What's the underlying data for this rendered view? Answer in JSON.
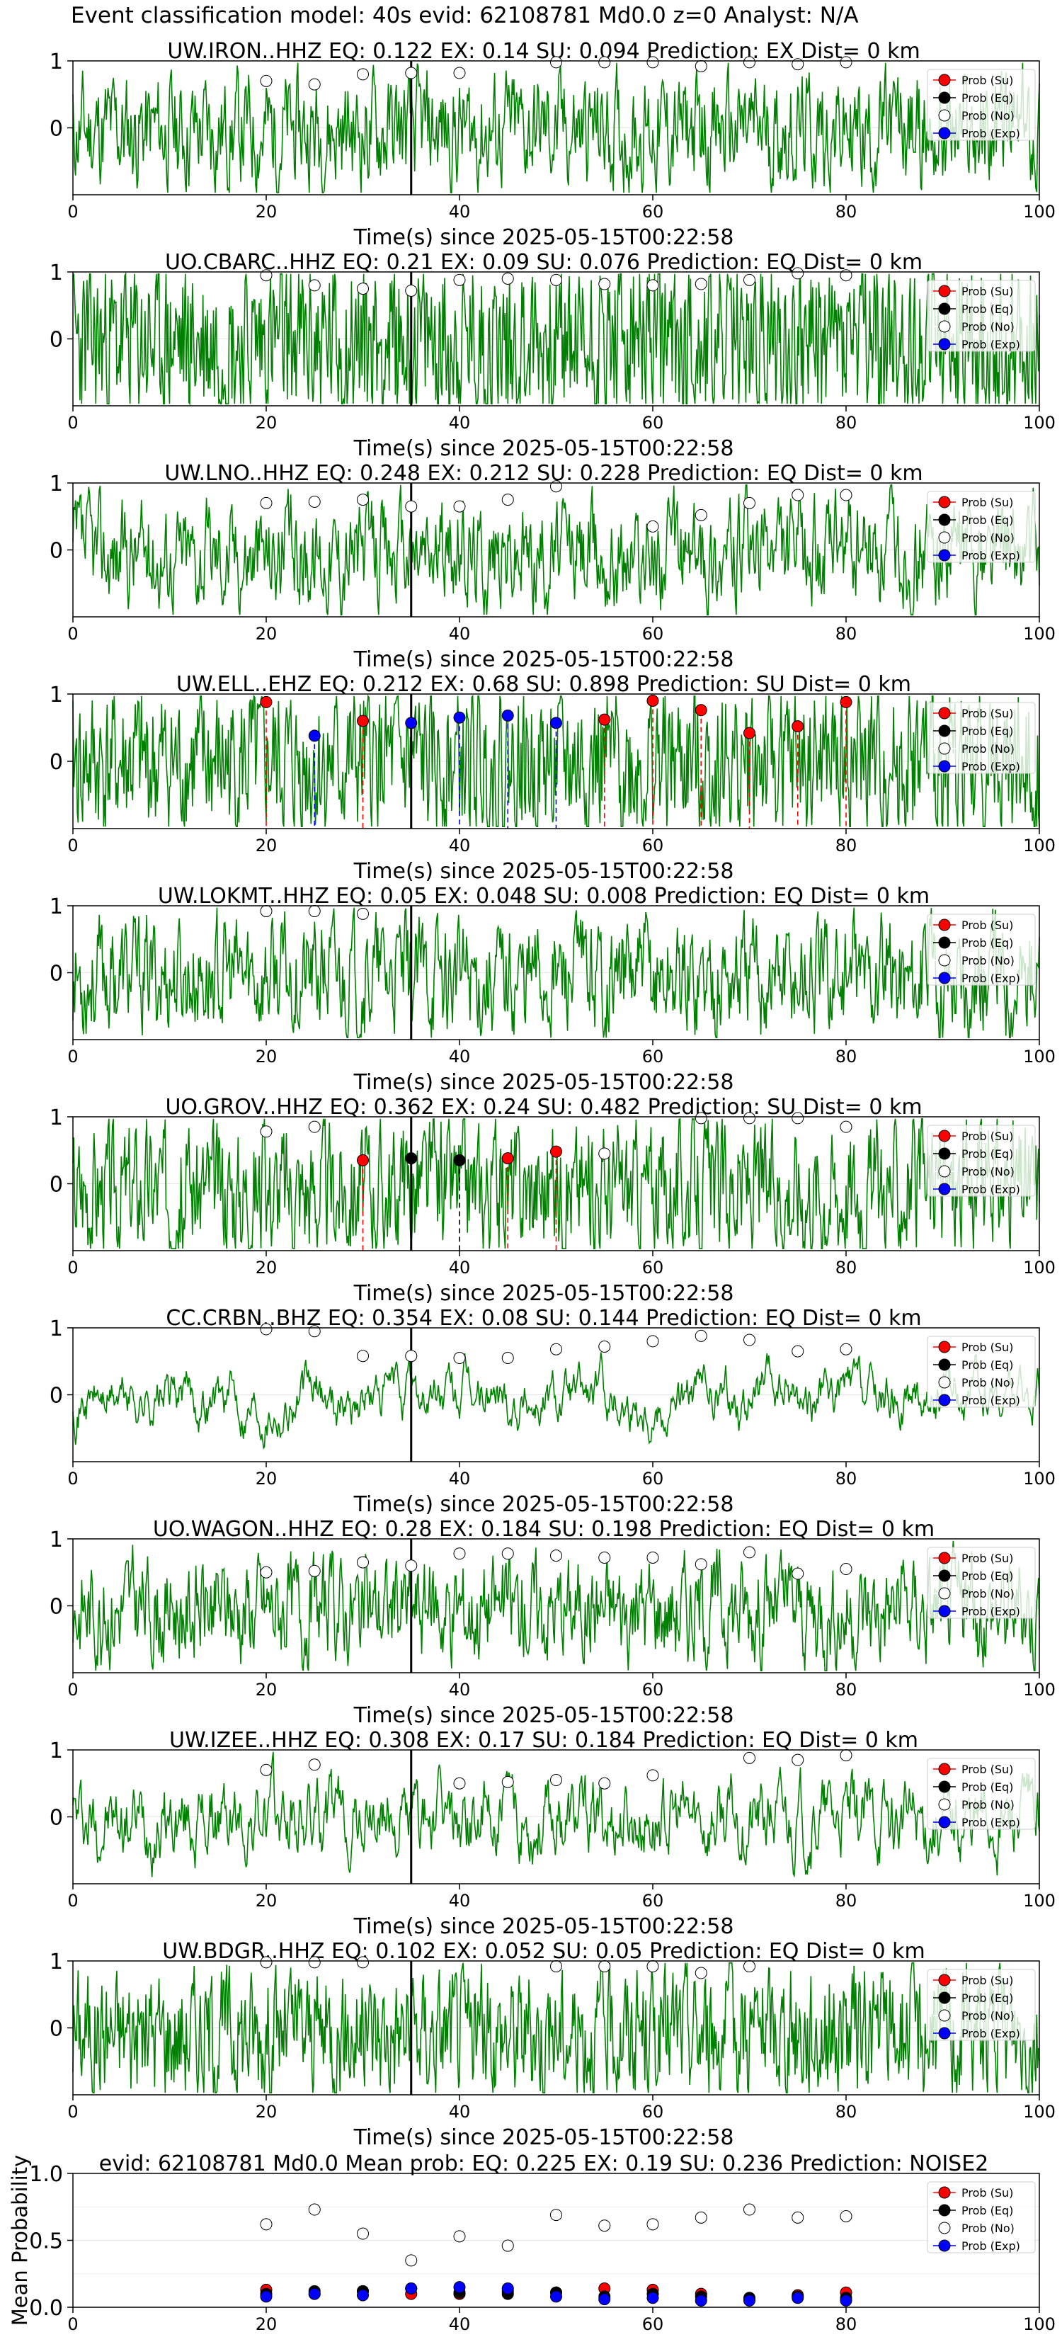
{
  "page_title": "Event classification model: 40s evid: 62108781 Md0.0 z=0 Analyst: N/A",
  "colors": {
    "waveform": "#008000",
    "su": "#ff0000",
    "eq": "#000000",
    "no": "#ffffff",
    "exp": "#0000ff",
    "pick_line": "#000000"
  },
  "legend": [
    "Prob (Su)",
    "Prob (Eq)",
    "Prob (No)",
    "Prob (Exp)"
  ],
  "xlabel": "Time(s) since 2025-05-15T00:22:58",
  "pick_time": 35,
  "chart_data": [
    {
      "type": "line",
      "title": "UW.IRON..HHZ    EQ: 0.122   EX: 0.14   SU: 0.094    Prediction: EX     Dist= 0 km",
      "xlim": [
        0,
        100
      ],
      "ylim": [
        -1,
        1
      ],
      "xticks": [
        0,
        20,
        40,
        60,
        80,
        100
      ],
      "yticks": [
        1,
        0
      ],
      "su_points": [],
      "eq_points": [],
      "exp_points": [],
      "no_points": [
        [
          20,
          0.7
        ],
        [
          25,
          0.65
        ],
        [
          30,
          0.8
        ],
        [
          35,
          0.82
        ],
        [
          40,
          0.82
        ],
        [
          50,
          0.98
        ],
        [
          55,
          0.98
        ],
        [
          60,
          0.98
        ],
        [
          65,
          0.92
        ],
        [
          70,
          0.98
        ],
        [
          75,
          0.95
        ],
        [
          80,
          0.98
        ]
      ]
    },
    {
      "type": "line",
      "title": "UO.CBARC..HHZ   EQ: 0.21   EX: 0.09   SU: 0.076    Prediction: EQ     Dist= 0 km",
      "xlim": [
        0,
        100
      ],
      "ylim": [
        -1,
        1
      ],
      "xticks": [
        0,
        20,
        40,
        60,
        80,
        100
      ],
      "yticks": [
        1,
        0
      ],
      "su_points": [],
      "eq_points": [],
      "exp_points": [],
      "no_points": [
        [
          20,
          0.95
        ],
        [
          25,
          0.8
        ],
        [
          30,
          0.75
        ],
        [
          35,
          0.72
        ],
        [
          40,
          0.88
        ],
        [
          45,
          0.9
        ],
        [
          50,
          0.88
        ],
        [
          55,
          0.82
        ],
        [
          60,
          0.8
        ],
        [
          65,
          0.82
        ],
        [
          70,
          0.88
        ],
        [
          75,
          0.98
        ],
        [
          80,
          0.95
        ]
      ]
    },
    {
      "type": "line",
      "title": "UW.LNO..HHZ   EQ: 0.248   EX: 0.212   SU: 0.228    Prediction: EQ     Dist= 0 km",
      "xlim": [
        0,
        100
      ],
      "ylim": [
        -1,
        1
      ],
      "xticks": [
        0,
        20,
        40,
        60,
        80,
        100
      ],
      "yticks": [
        1,
        0
      ],
      "su_points": [],
      "eq_points": [],
      "exp_points": [],
      "no_points": [
        [
          20,
          0.7
        ],
        [
          25,
          0.72
        ],
        [
          30,
          0.75
        ],
        [
          35,
          0.65
        ],
        [
          40,
          0.65
        ],
        [
          45,
          0.75
        ],
        [
          50,
          0.95
        ],
        [
          60,
          0.35
        ],
        [
          65,
          0.52
        ],
        [
          70,
          0.7
        ],
        [
          75,
          0.82
        ],
        [
          80,
          0.82
        ]
      ]
    },
    {
      "type": "line",
      "title": "UW.ELL..EHZ    EQ: 0.212   EX: 0.68   SU: 0.898    Prediction: SU     Dist= 0 km",
      "xlim": [
        0,
        100
      ],
      "ylim": [
        -1,
        1
      ],
      "xticks": [
        0,
        20,
        40,
        60,
        80,
        100
      ],
      "yticks": [
        1,
        0
      ],
      "su_points": [
        [
          20,
          0.88
        ],
        [
          30,
          0.6
        ],
        [
          55,
          0.62
        ],
        [
          60,
          0.9
        ],
        [
          65,
          0.76
        ],
        [
          70,
          0.42
        ],
        [
          75,
          0.52
        ],
        [
          80,
          0.88
        ]
      ],
      "eq_points": [],
      "exp_points": [
        [
          25,
          0.38
        ],
        [
          35,
          0.57
        ],
        [
          40,
          0.65
        ],
        [
          45,
          0.68
        ],
        [
          50,
          0.57
        ]
      ],
      "no_points": []
    },
    {
      "type": "line",
      "title": "UW.LOKMT..HHZ    EQ: 0.05   EX: 0.048   SU: 0.008    Prediction: EQ     Dist= 0 km",
      "xlim": [
        0,
        100
      ],
      "ylim": [
        -1,
        1
      ],
      "xticks": [
        0,
        20,
        40,
        60,
        80,
        100
      ],
      "yticks": [
        1,
        0
      ],
      "su_points": [],
      "eq_points": [],
      "exp_points": [],
      "no_points": [
        [
          20,
          0.92
        ],
        [
          25,
          0.92
        ],
        [
          30,
          0.88
        ]
      ]
    },
    {
      "type": "line",
      "title": "UO.GROV..HHZ    EQ: 0.362   EX: 0.24   SU: 0.482    Prediction: SU     Dist= 0 km",
      "xlim": [
        0,
        100
      ],
      "ylim": [
        -1,
        1
      ],
      "xticks": [
        0,
        20,
        40,
        60,
        80,
        100
      ],
      "yticks": [
        1,
        0
      ],
      "su_points": [
        [
          30,
          0.35
        ],
        [
          45,
          0.38
        ],
        [
          50,
          0.48
        ]
      ],
      "eq_points": [
        [
          35,
          0.38
        ],
        [
          40,
          0.35
        ]
      ],
      "exp_points": [],
      "no_points": [
        [
          20,
          0.78
        ],
        [
          25,
          0.85
        ],
        [
          55,
          0.45
        ],
        [
          65,
          0.98
        ],
        [
          70,
          0.98
        ],
        [
          75,
          0.98
        ],
        [
          80,
          0.85
        ]
      ]
    },
    {
      "type": "line",
      "title": "CC.CRBN..BHZ    EQ: 0.354   EX: 0.08   SU: 0.144    Prediction: EQ     Dist= 0 km",
      "xlim": [
        0,
        100
      ],
      "ylim": [
        -1,
        1
      ],
      "xticks": [
        0,
        20,
        40,
        60,
        80,
        100
      ],
      "yticks": [
        1,
        0
      ],
      "su_points": [],
      "eq_points": [],
      "exp_points": [],
      "no_points": [
        [
          20,
          0.98
        ],
        [
          25,
          0.95
        ],
        [
          30,
          0.58
        ],
        [
          35,
          0.58
        ],
        [
          40,
          0.55
        ],
        [
          45,
          0.55
        ],
        [
          50,
          0.68
        ],
        [
          55,
          0.72
        ],
        [
          60,
          0.8
        ],
        [
          65,
          0.88
        ],
        [
          70,
          0.82
        ],
        [
          75,
          0.65
        ],
        [
          80,
          0.68
        ]
      ]
    },
    {
      "type": "line",
      "title": "UO.WAGON..HHZ    EQ: 0.28   EX: 0.184   SU: 0.198    Prediction: EQ     Dist= 0 km",
      "xlim": [
        0,
        100
      ],
      "ylim": [
        -1,
        1
      ],
      "xticks": [
        0,
        20,
        40,
        60,
        80,
        100
      ],
      "yticks": [
        1,
        0
      ],
      "su_points": [],
      "eq_points": [],
      "exp_points": [],
      "no_points": [
        [
          20,
          0.5
        ],
        [
          25,
          0.52
        ],
        [
          30,
          0.65
        ],
        [
          35,
          0.6
        ],
        [
          40,
          0.78
        ],
        [
          45,
          0.78
        ],
        [
          50,
          0.75
        ],
        [
          55,
          0.72
        ],
        [
          60,
          0.72
        ],
        [
          65,
          0.62
        ],
        [
          70,
          0.8
        ],
        [
          75,
          0.48
        ],
        [
          80,
          0.55
        ]
      ]
    },
    {
      "type": "line",
      "title": "UW.IZEE..HHZ    EQ: 0.308   EX: 0.17   SU: 0.184    Prediction: EQ     Dist= 0 km",
      "xlim": [
        0,
        100
      ],
      "ylim": [
        -1,
        1
      ],
      "xticks": [
        0,
        20,
        40,
        60,
        80,
        100
      ],
      "yticks": [
        1,
        0
      ],
      "su_points": [],
      "eq_points": [],
      "exp_points": [],
      "no_points": [
        [
          20,
          0.7
        ],
        [
          25,
          0.78
        ],
        [
          40,
          0.5
        ],
        [
          45,
          0.52
        ],
        [
          50,
          0.55
        ],
        [
          55,
          0.5
        ],
        [
          60,
          0.62
        ],
        [
          70,
          0.88
        ],
        [
          75,
          0.85
        ],
        [
          80,
          0.92
        ]
      ]
    },
    {
      "type": "line",
      "title": "UW.BDGR..HHZ    EQ: 0.102   EX: 0.052   SU: 0.05    Prediction: EQ     Dist= 0 km",
      "xlim": [
        0,
        100
      ],
      "ylim": [
        -1,
        1
      ],
      "xticks": [
        0,
        20,
        40,
        60,
        80,
        100
      ],
      "yticks": [
        1,
        0
      ],
      "su_points": [],
      "eq_points": [],
      "exp_points": [],
      "no_points": [
        [
          20,
          0.98
        ],
        [
          25,
          0.98
        ],
        [
          30,
          0.98
        ],
        [
          50,
          0.92
        ],
        [
          55,
          0.92
        ],
        [
          60,
          0.92
        ],
        [
          65,
          0.82
        ],
        [
          70,
          0.92
        ]
      ]
    },
    {
      "type": "scatter",
      "title": "evid: 62108781  Md0.0    Mean prob:    EQ: 0.225   EX: 0.19   SU: 0.236    Prediction: NOISE2",
      "ylabel": "Mean Probability",
      "xlim": [
        0,
        100
      ],
      "ylim": [
        0,
        1
      ],
      "xticks": [
        0,
        20,
        40,
        60,
        80,
        100
      ],
      "yticks": [
        1.0,
        0.5,
        0.0
      ],
      "x": [
        20,
        25,
        30,
        35,
        40,
        45,
        50,
        55,
        60,
        65,
        70,
        75,
        80
      ],
      "no": [
        0.62,
        0.73,
        0.55,
        0.35,
        0.53,
        0.46,
        0.69,
        0.61,
        0.62,
        0.67,
        0.73,
        0.67,
        0.68
      ],
      "su": [
        0.13,
        0.1,
        0.12,
        0.1,
        0.1,
        0.12,
        0.11,
        0.14,
        0.13,
        0.1,
        0.06,
        0.09,
        0.11
      ],
      "eq": [
        0.1,
        0.12,
        0.12,
        0.14,
        0.11,
        0.1,
        0.11,
        0.08,
        0.1,
        0.08,
        0.07,
        0.08,
        0.07
      ],
      "exp": [
        0.08,
        0.1,
        0.09,
        0.14,
        0.15,
        0.14,
        0.08,
        0.06,
        0.07,
        0.05,
        0.05,
        0.07,
        0.05
      ]
    }
  ]
}
